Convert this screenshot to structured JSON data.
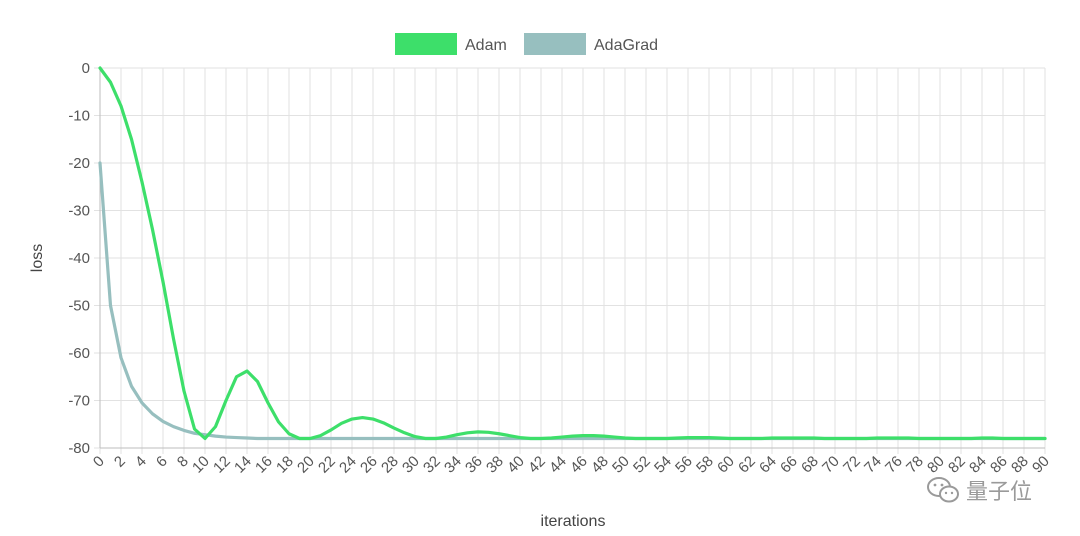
{
  "chart_data": {
    "type": "line",
    "xlabel": "iterations",
    "ylabel": "loss",
    "xlim": [
      0,
      90
    ],
    "ylim": [
      -80,
      0
    ],
    "grid": true,
    "legend_position": "top-center",
    "x": [
      0,
      1,
      2,
      3,
      4,
      5,
      6,
      7,
      8,
      9,
      10,
      11,
      12,
      13,
      14,
      15,
      16,
      17,
      18,
      19,
      20,
      21,
      22,
      23,
      24,
      25,
      26,
      27,
      28,
      29,
      30,
      31,
      32,
      33,
      34,
      35,
      36,
      37,
      38,
      39,
      40,
      41,
      42,
      43,
      44,
      45,
      46,
      47,
      48,
      49,
      50,
      51,
      52,
      53,
      54,
      55,
      56,
      57,
      58,
      59,
      60,
      61,
      62,
      63,
      64,
      65,
      66,
      67,
      68,
      69,
      70,
      71,
      72,
      73,
      74,
      75,
      76,
      77,
      78,
      79,
      80,
      81,
      82,
      83,
      84,
      85,
      86,
      87,
      88,
      89,
      90
    ],
    "x_tick_labels": [
      "0",
      "2",
      "4",
      "6",
      "8",
      "10",
      "12",
      "14",
      "16",
      "18",
      "20",
      "22",
      "24",
      "26",
      "28",
      "30",
      "32",
      "34",
      "36",
      "38",
      "40",
      "42",
      "44",
      "46",
      "48",
      "50",
      "52",
      "54",
      "56",
      "58",
      "60",
      "62",
      "64",
      "66",
      "68",
      "70",
      "72",
      "74",
      "76",
      "78",
      "80",
      "82",
      "84",
      "86",
      "88",
      "90"
    ],
    "y_ticks": [
      0,
      -10,
      -20,
      -30,
      -40,
      -50,
      -60,
      -70,
      -80
    ],
    "series": [
      {
        "name": "Adam",
        "color": "#3ddf6a",
        "values": [
          0,
          -3,
          -8,
          -15,
          -24,
          -34,
          -45,
          -57,
          -68,
          -76,
          -78,
          -75.5,
          -70,
          -65,
          -63.8,
          -66,
          -70.5,
          -74.5,
          -77,
          -78,
          -78,
          -77.4,
          -76.2,
          -74.8,
          -73.9,
          -73.6,
          -73.9,
          -74.7,
          -75.8,
          -76.8,
          -77.6,
          -78,
          -78,
          -77.7,
          -77.2,
          -76.8,
          -76.6,
          -76.7,
          -77,
          -77.4,
          -77.8,
          -78,
          -78,
          -77.9,
          -77.7,
          -77.5,
          -77.4,
          -77.4,
          -77.5,
          -77.7,
          -77.9,
          -78,
          -78,
          -78,
          -78,
          -77.9,
          -77.8,
          -77.8,
          -77.8,
          -77.9,
          -78,
          -78,
          -78,
          -78,
          -77.9,
          -77.9,
          -77.9,
          -77.9,
          -77.9,
          -78,
          -78,
          -78,
          -78,
          -78,
          -77.9,
          -77.9,
          -77.9,
          -77.9,
          -78,
          -78,
          -78,
          -78,
          -78,
          -78,
          -77.9,
          -77.9,
          -78,
          -78,
          -78,
          -78,
          -78
        ]
      },
      {
        "name": "AdaGrad",
        "color": "#97bfbf",
        "values": [
          -20,
          -50,
          -61,
          -67,
          -70.5,
          -72.8,
          -74.4,
          -75.5,
          -76.3,
          -76.9,
          -77.2,
          -77.5,
          -77.7,
          -77.8,
          -77.9,
          -78,
          -78,
          -78,
          -78,
          -78,
          -78,
          -78,
          -78,
          -78,
          -78,
          -78,
          -78,
          -78,
          -78,
          -78,
          -78,
          -78,
          -78,
          -78,
          -78,
          -78,
          -78,
          -78,
          -78,
          -78,
          -78,
          -78,
          -78,
          -78,
          -78,
          -78,
          -78,
          -78,
          -78,
          -78,
          -78,
          -78,
          -78,
          -78,
          -78,
          -78,
          -78,
          -78,
          -78,
          -78,
          -78,
          -78,
          -78,
          -78,
          -78,
          -78,
          -78,
          -78,
          -78,
          -78,
          -78,
          -78,
          -78,
          -78,
          -78,
          -78,
          -78,
          -78,
          -78,
          -78,
          -78,
          -78,
          -78,
          -78,
          -78,
          -78,
          -78,
          -78,
          -78,
          -78,
          -78
        ]
      }
    ]
  },
  "watermark": {
    "text": "量子位",
    "icon": "wechat-icon"
  }
}
